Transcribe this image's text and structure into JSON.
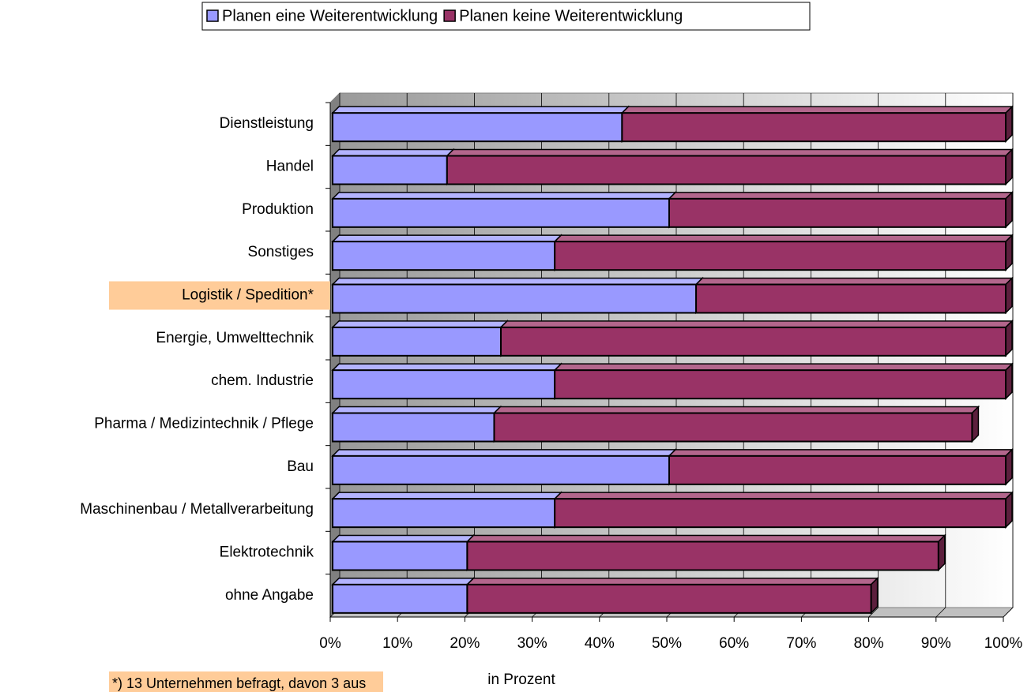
{
  "chart_data": {
    "type": "bar",
    "orientation": "horizontal",
    "stacked": true,
    "categories": [
      "Dienstleistung",
      "Handel",
      "Produktion",
      "Sonstiges",
      "Logistik / Spedition*",
      "Energie, Umwelttechnik",
      "chem. Industrie",
      "Pharma / Medizintechnik / Pflege",
      "Bau",
      "Maschinenbau / Metallverarbeitung",
      "Elektrotechnik",
      "ohne Angabe"
    ],
    "series": [
      {
        "name": "Planen eine Weiterentwicklung",
        "color": "#9999ff",
        "values": [
          43,
          17,
          50,
          33,
          54,
          25,
          33,
          24,
          50,
          33,
          20,
          20
        ]
      },
      {
        "name": "Planen keine Weiterentwicklung",
        "color": "#993366",
        "values": [
          57,
          83,
          50,
          67,
          46,
          75,
          67,
          71,
          50,
          67,
          70,
          60
        ]
      }
    ],
    "xlim": [
      0,
      100
    ],
    "xticks": [
      {
        "value": 0,
        "label": "0%"
      },
      {
        "value": 10,
        "label": "10%"
      },
      {
        "value": 20,
        "label": "20%"
      },
      {
        "value": 30,
        "label": "30%"
      },
      {
        "value": 40,
        "label": "40%"
      },
      {
        "value": 50,
        "label": "50%"
      },
      {
        "value": 60,
        "label": "60%"
      },
      {
        "value": 70,
        "label": "70%"
      },
      {
        "value": 80,
        "label": "80%"
      },
      {
        "value": 90,
        "label": "90%"
      },
      {
        "value": 100,
        "label": "100%"
      }
    ],
    "xlabel": "in Prozent",
    "grid": true,
    "legend": "top",
    "highlight_index": 4,
    "highlight_color": "#ffcc99",
    "footnote": "*) 13 Unternehmen befragt, davon 3 aus"
  }
}
